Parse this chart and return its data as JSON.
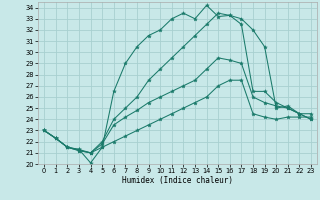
{
  "xlabel": "Humidex (Indice chaleur)",
  "xlim": [
    -0.5,
    23.5
  ],
  "ylim": [
    20,
    34.5
  ],
  "yticks": [
    20,
    21,
    22,
    23,
    24,
    25,
    26,
    27,
    28,
    29,
    30,
    31,
    32,
    33,
    34
  ],
  "xticks": [
    0,
    1,
    2,
    3,
    4,
    5,
    6,
    7,
    8,
    9,
    10,
    11,
    12,
    13,
    14,
    15,
    16,
    17,
    18,
    19,
    20,
    21,
    22,
    23
  ],
  "bg_color": "#c8e8e8",
  "grid_color": "#a8d0d0",
  "line_color": "#1a7a6a",
  "series": [
    {
      "name": "curve_max",
      "x": [
        0,
        1,
        2,
        3,
        4,
        5,
        6,
        7,
        8,
        9,
        10,
        11,
        12,
        13,
        14,
        15,
        16,
        17,
        18,
        19,
        20,
        21,
        22,
        23
      ],
      "y": [
        23.0,
        22.3,
        21.5,
        21.3,
        20.1,
        21.5,
        26.5,
        29.0,
        30.5,
        31.5,
        32.0,
        33.0,
        33.5,
        33.0,
        34.2,
        33.2,
        33.3,
        33.0,
        32.0,
        30.5,
        25.0,
        25.2,
        24.5,
        24.5
      ]
    },
    {
      "name": "curve_avg",
      "x": [
        0,
        1,
        2,
        3,
        4,
        5,
        6,
        7,
        8,
        9,
        10,
        11,
        12,
        13,
        14,
        15,
        16,
        17,
        18,
        19,
        20,
        21,
        22,
        23
      ],
      "y": [
        23.0,
        22.3,
        21.5,
        21.3,
        21.0,
        22.0,
        24.0,
        25.0,
        26.0,
        27.5,
        28.5,
        29.5,
        30.5,
        31.5,
        32.5,
        33.5,
        33.3,
        32.5,
        26.5,
        26.5,
        25.5,
        25.0,
        24.5,
        24.0
      ]
    },
    {
      "name": "curve_min_upper",
      "x": [
        0,
        1,
        2,
        3,
        4,
        5,
        6,
        7,
        8,
        9,
        10,
        11,
        12,
        13,
        14,
        15,
        16,
        17,
        18,
        19,
        20,
        21,
        22,
        23
      ],
      "y": [
        23.0,
        22.3,
        21.5,
        21.2,
        21.0,
        21.8,
        23.5,
        24.2,
        24.8,
        25.5,
        26.0,
        26.5,
        27.0,
        27.5,
        28.5,
        29.5,
        29.3,
        29.0,
        26.0,
        25.5,
        25.2,
        25.0,
        24.5,
        24.0
      ]
    },
    {
      "name": "curve_min",
      "x": [
        0,
        1,
        2,
        3,
        4,
        5,
        6,
        7,
        8,
        9,
        10,
        11,
        12,
        13,
        14,
        15,
        16,
        17,
        18,
        19,
        20,
        21,
        22,
        23
      ],
      "y": [
        23.0,
        22.3,
        21.5,
        21.2,
        21.0,
        21.5,
        22.0,
        22.5,
        23.0,
        23.5,
        24.0,
        24.5,
        25.0,
        25.5,
        26.0,
        27.0,
        27.5,
        27.5,
        24.5,
        24.2,
        24.0,
        24.2,
        24.2,
        24.2
      ]
    }
  ]
}
